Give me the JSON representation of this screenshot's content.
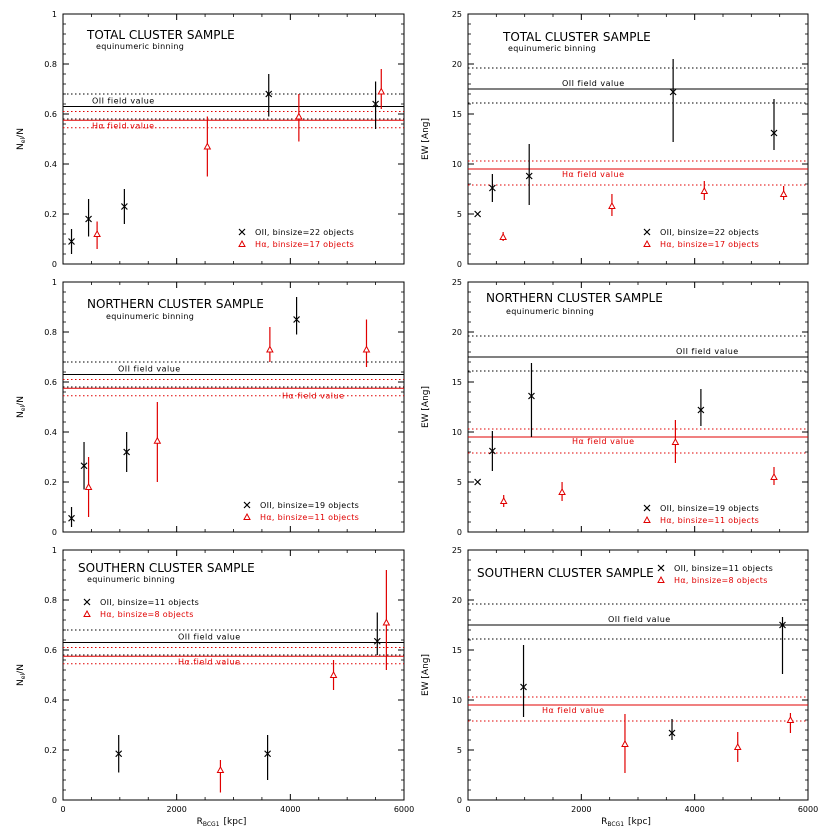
{
  "colors": {
    "oii": "#000000",
    "ha": "#e00000",
    "frame": "#000000"
  },
  "shared": {
    "x_label_main": "R",
    "x_label_sub": "BCG1",
    "x_label_unit": "[kpc]",
    "x_ticks": [
      "0",
      "2000",
      "4000",
      "6000"
    ],
    "left_ylabel_main": "N",
    "left_ylabel_sub": "el",
    "left_ylabel_rest": "/N",
    "right_ylabel": "EW [Ang]",
    "binning_note": "equinumeric binning",
    "oii_field_label": "OII field value",
    "ha_field_label": "Hα field value"
  },
  "chart_data": [
    {
      "type": "scatter",
      "panel": "top-left",
      "title": "TOTAL CLUSTER SAMPLE",
      "xlabel": "",
      "ylabel": "N_el/N",
      "xlim": [
        0,
        6000
      ],
      "ylim": [
        0,
        1
      ],
      "y_ticks": [
        "0",
        "0.2",
        "0.4",
        "0.6",
        "0.8",
        "1"
      ],
      "field": {
        "oii": 0.63,
        "oii_band": [
          0.58,
          0.68
        ],
        "ha": 0.575,
        "ha_band": [
          0.545,
          0.61
        ]
      },
      "legend_position": "bottom-right",
      "series": [
        {
          "name": "OII, binsize=22 objects",
          "marker": "x",
          "points": [
            {
              "x": 150,
              "y": 0.09,
              "lo": 0.04,
              "hi": 0.14
            },
            {
              "x": 450,
              "y": 0.18,
              "lo": 0.11,
              "hi": 0.26
            },
            {
              "x": 1080,
              "y": 0.23,
              "lo": 0.16,
              "hi": 0.3
            },
            {
              "x": 3620,
              "y": 0.68,
              "lo": 0.59,
              "hi": 0.76
            },
            {
              "x": 5500,
              "y": 0.64,
              "lo": 0.54,
              "hi": 0.73
            }
          ]
        },
        {
          "name": "Hα, binsize=17 objects",
          "marker": "triangle",
          "points": [
            {
              "x": 600,
              "y": 0.12,
              "lo": 0.06,
              "hi": 0.17
            },
            {
              "x": 2540,
              "y": 0.47,
              "lo": 0.35,
              "hi": 0.59
            },
            {
              "x": 4150,
              "y": 0.59,
              "lo": 0.49,
              "hi": 0.68
            },
            {
              "x": 5600,
              "y": 0.69,
              "lo": 0.62,
              "hi": 0.78
            }
          ]
        }
      ]
    },
    {
      "type": "scatter",
      "panel": "top-right",
      "title": "TOTAL CLUSTER SAMPLE",
      "xlabel": "",
      "ylabel": "EW [Ang]",
      "xlim": [
        0,
        6000
      ],
      "ylim": [
        0,
        25
      ],
      "y_ticks": [
        "0",
        "5",
        "10",
        "15",
        "20",
        "25"
      ],
      "field": {
        "oii": 17.5,
        "oii_band": [
          16.1,
          19.6
        ],
        "ha": 9.5,
        "ha_band": [
          7.9,
          10.3
        ]
      },
      "legend_position": "bottom-right",
      "series": [
        {
          "name": "OII, binsize=22 objects",
          "marker": "x",
          "points": [
            {
              "x": 170,
              "y": 5.0
            },
            {
              "x": 430,
              "y": 7.6,
              "lo": 6.2,
              "hi": 9.0
            },
            {
              "x": 1080,
              "y": 8.8,
              "lo": 5.9,
              "hi": 12.0
            },
            {
              "x": 3620,
              "y": 17.2,
              "lo": 12.2,
              "hi": 20.5
            },
            {
              "x": 5400,
              "y": 13.1,
              "lo": 11.4,
              "hi": 16.5
            }
          ]
        },
        {
          "name": "Hα, binsize=17 objects",
          "marker": "triangle",
          "points": [
            {
              "x": 620,
              "y": 2.7,
              "lo": 2.3,
              "hi": 3.2
            },
            {
              "x": 2540,
              "y": 5.8,
              "lo": 4.8,
              "hi": 7.0
            },
            {
              "x": 4170,
              "y": 7.3,
              "lo": 6.4,
              "hi": 8.3
            },
            {
              "x": 5570,
              "y": 7.0,
              "lo": 6.4,
              "hi": 7.8
            }
          ]
        }
      ]
    },
    {
      "type": "scatter",
      "panel": "middle-left",
      "title": "NORTHERN CLUSTER SAMPLE",
      "xlabel": "",
      "ylabel": "N_el/N",
      "xlim": [
        0,
        6000
      ],
      "ylim": [
        0,
        1
      ],
      "y_ticks": [
        "0",
        "0.2",
        "0.4",
        "0.6",
        "0.8",
        "1"
      ],
      "field": {
        "oii": 0.63,
        "oii_band": [
          0.58,
          0.68
        ],
        "ha": 0.575,
        "ha_band": [
          0.545,
          0.61
        ]
      },
      "legend_position": "bottom-right",
      "series": [
        {
          "name": "OII, binsize=19 objects",
          "marker": "x",
          "points": [
            {
              "x": 150,
              "y": 0.055,
              "lo": 0.02,
              "hi": 0.1
            },
            {
              "x": 370,
              "y": 0.265,
              "lo": 0.17,
              "hi": 0.36
            },
            {
              "x": 1120,
              "y": 0.32,
              "lo": 0.24,
              "hi": 0.4
            },
            {
              "x": 4110,
              "y": 0.85,
              "lo": 0.79,
              "hi": 0.94
            }
          ]
        },
        {
          "name": "Hα, binsize=11 objects",
          "marker": "triangle",
          "points": [
            {
              "x": 450,
              "y": 0.18,
              "lo": 0.06,
              "hi": 0.3
            },
            {
              "x": 1660,
              "y": 0.365,
              "lo": 0.2,
              "hi": 0.52
            },
            {
              "x": 3640,
              "y": 0.73,
              "lo": 0.68,
              "hi": 0.82
            },
            {
              "x": 5340,
              "y": 0.73,
              "lo": 0.66,
              "hi": 0.85
            }
          ]
        }
      ]
    },
    {
      "type": "scatter",
      "panel": "middle-right",
      "title": "NORTHERN CLUSTER SAMPLE",
      "xlabel": "",
      "ylabel": "EW [Ang]",
      "xlim": [
        0,
        6000
      ],
      "ylim": [
        0,
        25
      ],
      "y_ticks": [
        "0",
        "5",
        "10",
        "15",
        "20",
        "25"
      ],
      "field": {
        "oii": 17.5,
        "oii_band": [
          16.1,
          19.6
        ],
        "ha": 9.5,
        "ha_band": [
          7.9,
          10.3
        ]
      },
      "legend_position": "bottom-right",
      "series": [
        {
          "name": "OII, binsize=19 objects",
          "marker": "x",
          "points": [
            {
              "x": 170,
              "y": 5.0
            },
            {
              "x": 430,
              "y": 8.1,
              "lo": 6.1,
              "hi": 10.1
            },
            {
              "x": 1120,
              "y": 13.6,
              "lo": 9.5,
              "hi": 16.9
            },
            {
              "x": 4110,
              "y": 12.2,
              "lo": 10.6,
              "hi": 14.3
            }
          ]
        },
        {
          "name": "Hα, binsize=11 objects",
          "marker": "triangle",
          "points": [
            {
              "x": 630,
              "y": 3.1,
              "lo": 2.5,
              "hi": 3.7
            },
            {
              "x": 1660,
              "y": 4.0,
              "lo": 3.1,
              "hi": 5.0
            },
            {
              "x": 3660,
              "y": 9.0,
              "lo": 6.9,
              "hi": 11.2
            },
            {
              "x": 5400,
              "y": 5.5,
              "lo": 4.7,
              "hi": 6.5
            }
          ]
        }
      ]
    },
    {
      "type": "scatter",
      "panel": "bottom-left",
      "title": "SOUTHERN CLUSTER SAMPLE",
      "xlabel": "R_BCG1 [kpc]",
      "ylabel": "N_el/N",
      "xlim": [
        0,
        6000
      ],
      "ylim": [
        0,
        1
      ],
      "y_ticks": [
        "0",
        "0.2",
        "0.4",
        "0.6",
        "0.8",
        "1"
      ],
      "field": {
        "oii": 0.63,
        "oii_band": [
          0.58,
          0.68
        ],
        "ha": 0.575,
        "ha_band": [
          0.545,
          0.61
        ]
      },
      "legend_position": "top-left",
      "series": [
        {
          "name": "OII, binsize=11 objects",
          "marker": "x",
          "points": [
            {
              "x": 980,
              "y": 0.185,
              "lo": 0.11,
              "hi": 0.26
            },
            {
              "x": 3600,
              "y": 0.185,
              "lo": 0.08,
              "hi": 0.26
            },
            {
              "x": 5530,
              "y": 0.635,
              "lo": 0.58,
              "hi": 0.75
            }
          ]
        },
        {
          "name": "Hα, binsize=8 objects",
          "marker": "triangle",
          "points": [
            {
              "x": 2770,
              "y": 0.12,
              "lo": 0.03,
              "hi": 0.16
            },
            {
              "x": 4760,
              "y": 0.5,
              "lo": 0.44,
              "hi": 0.56
            },
            {
              "x": 5690,
              "y": 0.71,
              "lo": 0.52,
              "hi": 0.92
            }
          ]
        }
      ]
    },
    {
      "type": "scatter",
      "panel": "bottom-right",
      "title": "SOUTHERN CLUSTER SAMPLE",
      "xlabel": "R_BCG1 [kpc]",
      "ylabel": "EW [Ang]",
      "xlim": [
        0,
        6000
      ],
      "ylim": [
        0,
        25
      ],
      "y_ticks": [
        "0",
        "5",
        "10",
        "15",
        "20",
        "25"
      ],
      "field": {
        "oii": 17.5,
        "oii_band": [
          16.1,
          19.6
        ],
        "ha": 9.5,
        "ha_band": [
          7.9,
          10.3
        ]
      },
      "legend_position": "top-right",
      "series": [
        {
          "name": "OII, binsize=11 objects",
          "marker": "x",
          "points": [
            {
              "x": 980,
              "y": 11.3,
              "lo": 8.3,
              "hi": 15.5
            },
            {
              "x": 3600,
              "y": 6.7,
              "lo": 6.0,
              "hi": 8.1
            },
            {
              "x": 5550,
              "y": 17.5,
              "lo": 12.6,
              "hi": 18.3
            }
          ]
        },
        {
          "name": "Hα, binsize=8 objects",
          "marker": "triangle",
          "points": [
            {
              "x": 2770,
              "y": 5.6,
              "lo": 2.7,
              "hi": 8.6
            },
            {
              "x": 4760,
              "y": 5.3,
              "lo": 3.8,
              "hi": 6.8
            },
            {
              "x": 5690,
              "y": 8.0,
              "lo": 6.7,
              "hi": 8.7
            }
          ]
        }
      ]
    }
  ]
}
